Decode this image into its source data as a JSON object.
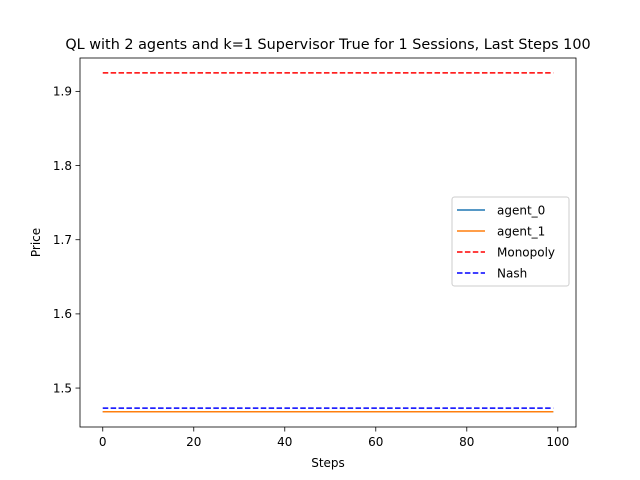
{
  "chart_data": {
    "type": "line",
    "title": "QL with 2 agents and k=1 Supervisor True for 1 Sessions, Last Steps 100",
    "xlabel": "Steps",
    "ylabel": "Price",
    "xlim": [
      -5,
      104
    ],
    "ylim": [
      1.4475,
      1.945
    ],
    "xticks": [
      0,
      20,
      40,
      60,
      80,
      100
    ],
    "yticks": [
      1.5,
      1.6,
      1.7,
      1.8,
      1.9
    ],
    "xtick_labels": [
      "0",
      "20",
      "40",
      "60",
      "80",
      "100"
    ],
    "ytick_labels": [
      "1.5",
      "1.6",
      "1.7",
      "1.8",
      "1.9"
    ],
    "legend_position": "center-right",
    "grid": false,
    "series": [
      {
        "name": "agent_0",
        "style": "solid",
        "color": "#1f77b4",
        "x": [
          0,
          99
        ],
        "values": [
          1.468,
          1.468
        ]
      },
      {
        "name": "agent_1",
        "style": "solid",
        "color": "#ff7f0e",
        "x": [
          0,
          99
        ],
        "values": [
          1.468,
          1.468
        ]
      },
      {
        "name": "Monopoly",
        "style": "dashed",
        "color": "#ff0000",
        "x": [
          0,
          99
        ],
        "values": [
          1.925,
          1.925
        ]
      },
      {
        "name": "Nash",
        "style": "dashed",
        "color": "#0000ff",
        "x": [
          0,
          99
        ],
        "values": [
          1.473,
          1.473
        ]
      }
    ]
  }
}
